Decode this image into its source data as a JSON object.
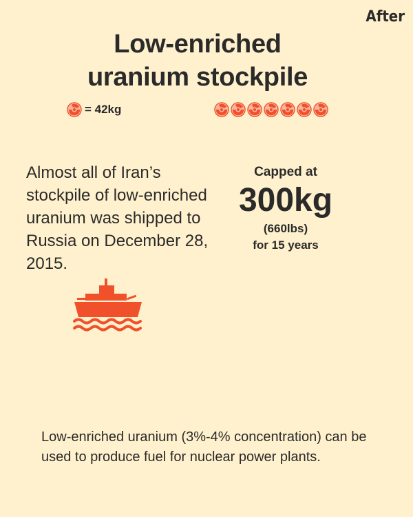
{
  "corner_label": "After",
  "title": {
    "line1": "Low-enriched",
    "line2": "uranium stockpile"
  },
  "legend": {
    "icon": "radiation-icon",
    "text": "= 42kg"
  },
  "stockpile": {
    "icon": "radiation-icon",
    "count": 7
  },
  "left_text": "Almost all of Iran’s stockpile of low-enriched uranium was shipped to Russia on December 28, 2015.",
  "cap": {
    "line1": "Capped at",
    "amount": "300kg",
    "converted": "(660lbs)",
    "duration": "for 15 years"
  },
  "ship_icon": "ship-icon",
  "bottom_note": "Low-enriched uranium (3%-4% concentration) can be used to produce fuel for nuclear power plants.",
  "colors": {
    "background": "#fff1cd",
    "accent": "#f0502a",
    "text": "#2a2a2a"
  }
}
